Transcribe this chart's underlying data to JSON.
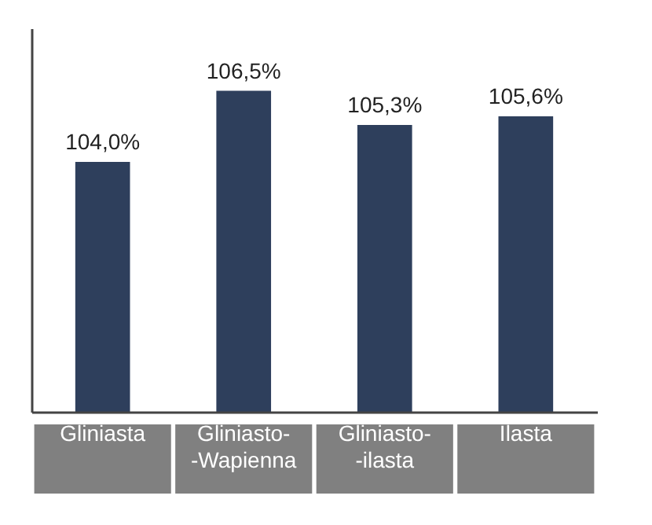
{
  "chart_data": {
    "type": "bar",
    "categories": [
      "Gliniasta",
      "Gliniasto-\n-Wapienna",
      "Gliniasto-\n-ilasta",
      "Ilasta"
    ],
    "values": [
      104.0,
      106.5,
      105.3,
      105.6
    ],
    "value_labels": [
      "104,0%",
      "106,5%",
      "105,3%",
      "105,6%"
    ],
    "color": "#2e3f5c",
    "ylim": [
      95.2,
      108.7
    ],
    "tick_labels": "x"
  }
}
